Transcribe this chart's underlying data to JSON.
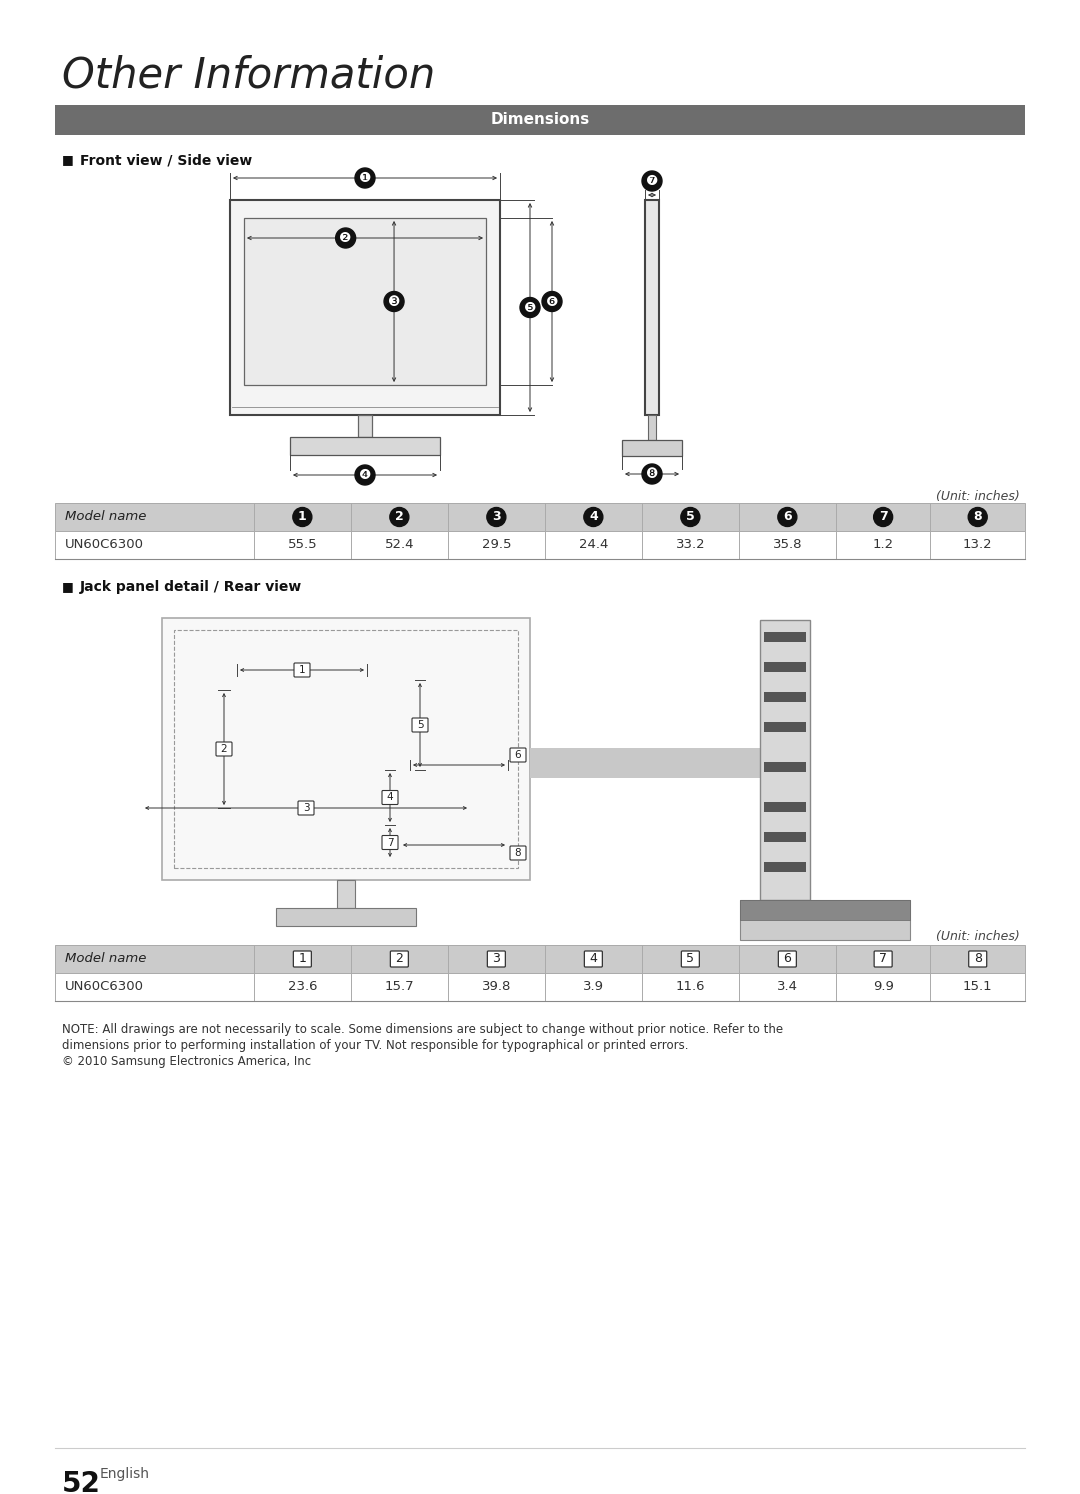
{
  "title": "Other Information",
  "section_header": "Dimensions",
  "section_header_bg": "#6d6d6d",
  "section_header_color": "#ffffff",
  "front_side_label": "Front view / Side view",
  "jack_panel_label": "Jack panel detail / Rear view",
  "table1_header": [
    "Model name",
    "1",
    "2",
    "3",
    "4",
    "5",
    "6",
    "7",
    "8"
  ],
  "table1_row": [
    "UN60C6300",
    "55.5",
    "52.4",
    "29.5",
    "24.4",
    "33.2",
    "35.8",
    "1.2",
    "13.2"
  ],
  "table2_header": [
    "Model name",
    "1",
    "2",
    "3",
    "4",
    "5",
    "6",
    "7",
    "8"
  ],
  "table2_row": [
    "UN60C6300",
    "23.6",
    "15.7",
    "39.8",
    "3.9",
    "11.6",
    "3.4",
    "9.9",
    "15.1"
  ],
  "unit_text": "(Unit: inches)",
  "note_line1": "NOTE: All drawings are not necessarily to scale. Some dimensions are subject to change without prior notice. Refer to the",
  "note_line2": "dimensions prior to performing installation of your TV. Not responsible for typographical or printed errors.",
  "note_line3": "© 2010 Samsung Electronics America, Inc",
  "page_num": "52",
  "page_label": "English",
  "bg_color": "#ffffff",
  "table1_header_style": "filled_circles",
  "table2_header_style": "outlined_squares"
}
